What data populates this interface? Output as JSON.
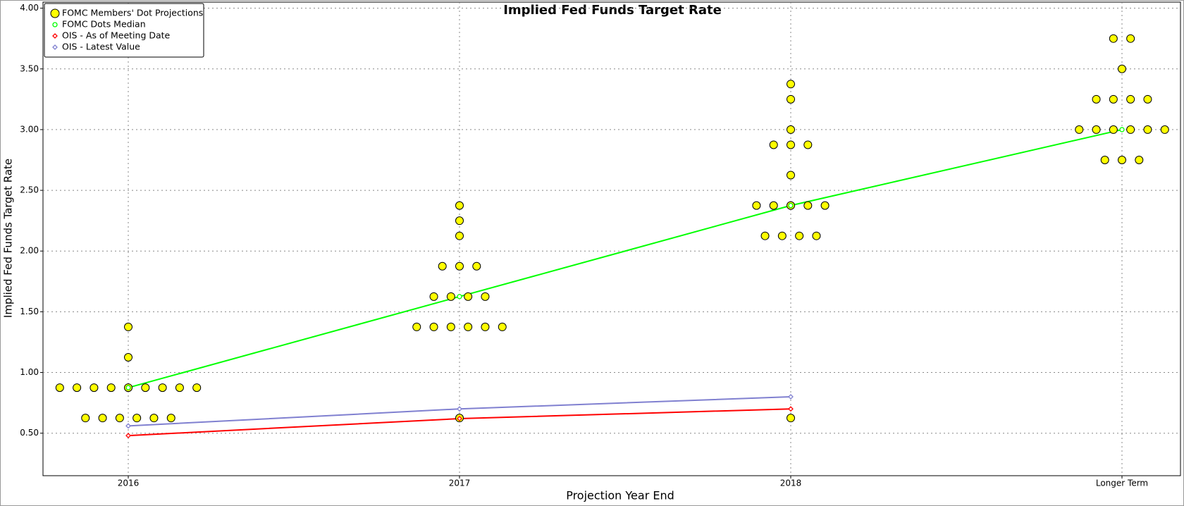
{
  "chart_data": {
    "type": "scatter",
    "title": "Implied Fed Funds Target Rate",
    "x_label": "Projection Year End",
    "y_label": "Implied Fed Funds Target Rate",
    "categories": [
      "2016",
      "2017",
      "2018",
      "Longer Term"
    ],
    "ylim": [
      0.15,
      4.05
    ],
    "yticks": [
      {
        "value": 0.5,
        "label": "0.50"
      },
      {
        "value": 1.0,
        "label": "1.00"
      },
      {
        "value": 1.5,
        "label": "1.50"
      },
      {
        "value": 2.0,
        "label": "2.00"
      },
      {
        "value": 2.5,
        "label": "2.50"
      },
      {
        "value": 3.0,
        "label": "3.00"
      },
      {
        "value": 3.5,
        "label": "3.50"
      },
      {
        "value": 4.0,
        "label": "4.00"
      }
    ],
    "grid": true,
    "legend": "upper left",
    "series": [
      {
        "name": "FOMC Members' Dot Projections",
        "color": "#ffff00",
        "marker": "circle",
        "values": [
          [
            0.875,
            0.875,
            0.875,
            0.875,
            0.875,
            0.875,
            0.875,
            0.875,
            0.875,
            0.625,
            0.625,
            0.625,
            0.625,
            0.625,
            0.625,
            1.125,
            1.375
          ],
          [
            0.625,
            1.375,
            1.375,
            1.375,
            1.375,
            1.375,
            1.375,
            1.625,
            1.625,
            1.625,
            1.625,
            1.875,
            1.875,
            1.875,
            2.125,
            2.25,
            2.375
          ],
          [
            0.625,
            2.125,
            2.125,
            2.125,
            2.125,
            2.375,
            2.375,
            2.375,
            2.375,
            2.375,
            2.625,
            2.875,
            2.875,
            2.875,
            3.0,
            3.25,
            3.375
          ],
          [
            2.75,
            2.75,
            2.75,
            3.0,
            3.0,
            3.0,
            3.0,
            3.0,
            3.0,
            3.25,
            3.25,
            3.25,
            3.25,
            3.5,
            3.75,
            3.75
          ]
        ]
      },
      {
        "name": "FOMC Dots Median",
        "color": "#00ff00",
        "marker": "hollow-circle",
        "values": [
          0.875,
          1.625,
          2.375,
          3.0
        ]
      },
      {
        "name": "OIS - As of Meeting Date",
        "color": "#ff0000",
        "marker": "diamond",
        "values": [
          0.48,
          0.62,
          0.7,
          null
        ]
      },
      {
        "name": "OIS - Latest Value",
        "color": "#8080d0",
        "marker": "diamond",
        "values": [
          0.56,
          0.7,
          0.8,
          null
        ]
      }
    ]
  }
}
